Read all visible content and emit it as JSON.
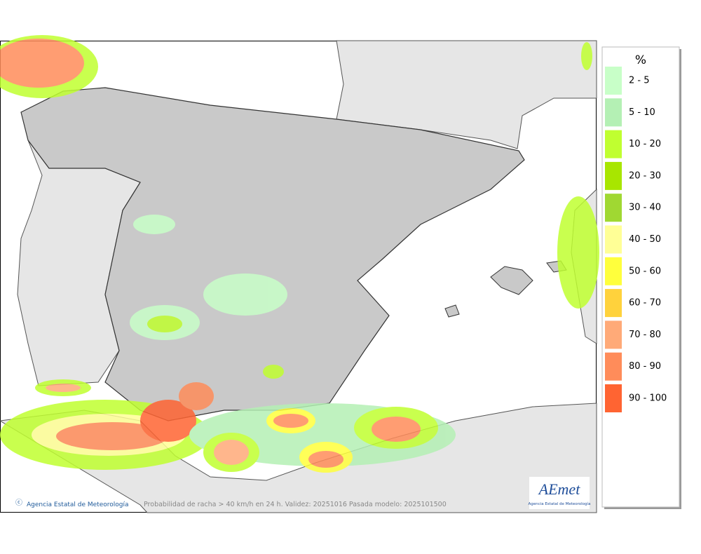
{
  "legend": {
    "title": "%",
    "items": [
      {
        "label": "2 - 5",
        "color": "#c8ffc8"
      },
      {
        "label": "5 - 10",
        "color": "#b4f0b4"
      },
      {
        "label": "10 - 20",
        "color": "#c0ff30"
      },
      {
        "label": "20 - 30",
        "color": "#a8e600"
      },
      {
        "label": "30 - 40",
        "color": "#a0d832"
      },
      {
        "label": "40 - 50",
        "color": "#ffff96"
      },
      {
        "label": "50 - 60",
        "color": "#ffff3c"
      },
      {
        "label": "60 - 70",
        "color": "#ffd23c"
      },
      {
        "label": "70 - 80",
        "color": "#ffaa78"
      },
      {
        "label": "80 - 90",
        "color": "#ff8c5a"
      },
      {
        "label": "90 - 100",
        "color": "#ff6432"
      }
    ]
  },
  "footer": {
    "credit": "Agencia Estatal de Meteorología",
    "caption": "Probabilidad de racha > 40 km/h en 24 h. Validez: 20251016 Pasada modelo: 2025101500"
  },
  "logo": {
    "name": "AEmet",
    "subtitle": "Agencia Estatal de Meteorología"
  }
}
